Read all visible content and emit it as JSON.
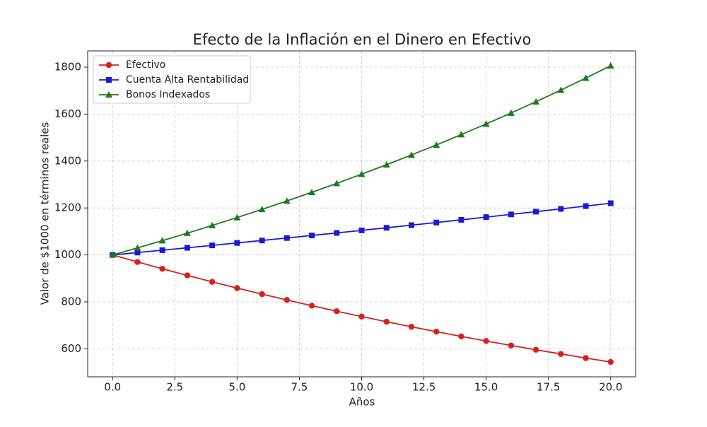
{
  "chart_data": {
    "type": "line",
    "title": "Efecto de la Inflación en el Dinero en Efectivo",
    "x_label": "Años",
    "y_label": "Valor de $1000 en términos reales",
    "x": [
      0,
      1,
      2,
      3,
      4,
      5,
      6,
      7,
      8,
      9,
      10,
      11,
      12,
      13,
      14,
      15,
      16,
      17,
      18,
      19,
      20
    ],
    "series": [
      {
        "name": "Efectivo",
        "color": "#d62020",
        "marker": "circle",
        "values": [
          1000,
          970,
          940.9,
          912.7,
          885.3,
          858.7,
          833.0,
          808.0,
          783.7,
          760.2,
          737.4,
          715.3,
          693.8,
          673.0,
          652.8,
          633.3,
          614.3,
          595.8,
          578.0,
          560.6,
          543.8
        ]
      },
      {
        "name": "Cuenta Alta Rentabilidad",
        "color": "#1a1ad6",
        "marker": "square",
        "values": [
          1000,
          1010,
          1020.1,
          1030.3,
          1040.6,
          1051.0,
          1061.5,
          1072.1,
          1082.9,
          1093.7,
          1104.6,
          1115.7,
          1126.8,
          1138.1,
          1149.5,
          1161.0,
          1172.6,
          1184.3,
          1196.1,
          1208.1,
          1220.2
        ]
      },
      {
        "name": "Bonos Indexados",
        "color": "#1f7a1f",
        "marker": "triangle",
        "values": [
          1000,
          1030,
          1060.9,
          1092.7,
          1125.5,
          1159.3,
          1194.1,
          1229.9,
          1266.8,
          1304.8,
          1343.9,
          1384.2,
          1425.8,
          1468.5,
          1512.6,
          1558.0,
          1604.7,
          1652.8,
          1702.4,
          1753.5,
          1806.1
        ]
      }
    ],
    "xlim": [
      -1,
      21
    ],
    "xticks": [
      {
        "value": 0,
        "label": "0.0"
      },
      {
        "value": 2.5,
        "label": "2.5"
      },
      {
        "value": 5,
        "label": "5.0"
      },
      {
        "value": 7.5,
        "label": "7.5"
      },
      {
        "value": 10,
        "label": "10.0"
      },
      {
        "value": 12.5,
        "label": "12.5"
      },
      {
        "value": 15,
        "label": "15.0"
      },
      {
        "value": 17.5,
        "label": "17.5"
      },
      {
        "value": 20,
        "label": "20.0"
      }
    ],
    "ylim": [
      480.7,
      1869.2
    ],
    "yticks": [
      600,
      800,
      1000,
      1200,
      1400,
      1600,
      1800
    ],
    "grid": true,
    "legend": "upper-left"
  }
}
